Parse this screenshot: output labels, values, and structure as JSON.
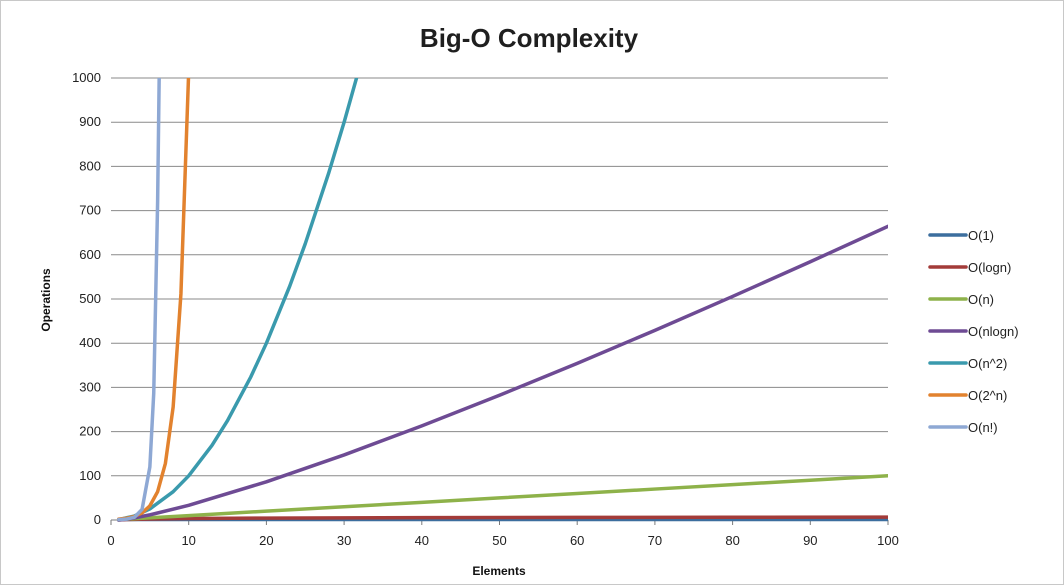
{
  "chart_data": {
    "type": "line",
    "title": "Big-O Complexity",
    "xlabel": "Elements",
    "ylabel": "Operations",
    "xlim": [
      0,
      100
    ],
    "ylim": [
      0,
      1000
    ],
    "x_ticks": [
      "0",
      "10",
      "20",
      "30",
      "40",
      "50",
      "60",
      "70",
      "80",
      "90",
      "100"
    ],
    "y_ticks": [
      "0",
      "100",
      "200",
      "300",
      "400",
      "500",
      "600",
      "700",
      "800",
      "900",
      "1000"
    ],
    "grid": true,
    "legend_position": "right",
    "series": [
      {
        "name": "O(1)",
        "color": "#3c6e9e",
        "points": [
          [
            1,
            1
          ],
          [
            100,
            1
          ]
        ]
      },
      {
        "name": "O(logn)",
        "color": "#a33b39",
        "points": [
          [
            1,
            0
          ],
          [
            2,
            1
          ],
          [
            5,
            2.3
          ],
          [
            10,
            3.3
          ],
          [
            20,
            4.3
          ],
          [
            40,
            5.3
          ],
          [
            60,
            5.9
          ],
          [
            80,
            6.3
          ],
          [
            100,
            6.6
          ]
        ]
      },
      {
        "name": "O(n)",
        "color": "#8eb24a",
        "points": [
          [
            1,
            1
          ],
          [
            10,
            10
          ],
          [
            20,
            20
          ],
          [
            30,
            30
          ],
          [
            40,
            40
          ],
          [
            50,
            50
          ],
          [
            60,
            60
          ],
          [
            70,
            70
          ],
          [
            80,
            80
          ],
          [
            90,
            90
          ],
          [
            100,
            100
          ]
        ]
      },
      {
        "name": "O(nlogn)",
        "color": "#6e4b94",
        "points": [
          [
            1,
            0
          ],
          [
            2,
            2
          ],
          [
            3,
            4.8
          ],
          [
            5,
            11.6
          ],
          [
            10,
            33.2
          ],
          [
            20,
            86.4
          ],
          [
            30,
            147.2
          ],
          [
            40,
            212.9
          ],
          [
            50,
            282.2
          ],
          [
            60,
            354.4
          ],
          [
            70,
            429
          ],
          [
            80,
            505.8
          ],
          [
            90,
            584.3
          ],
          [
            100,
            664.4
          ]
        ]
      },
      {
        "name": "O(n^2)",
        "color": "#3a9aad",
        "points": [
          [
            1,
            1
          ],
          [
            3,
            9
          ],
          [
            5,
            25
          ],
          [
            8,
            64
          ],
          [
            10,
            100
          ],
          [
            13,
            169
          ],
          [
            15,
            225
          ],
          [
            18,
            324
          ],
          [
            20,
            400
          ],
          [
            23,
            529
          ],
          [
            25,
            625
          ],
          [
            28,
            784
          ],
          [
            30,
            900
          ],
          [
            31.6,
            1000
          ]
        ]
      },
      {
        "name": "O(2^n)",
        "color": "#e2822e",
        "points": [
          [
            1,
            2
          ],
          [
            2,
            4
          ],
          [
            3,
            8
          ],
          [
            4,
            16
          ],
          [
            5,
            32
          ],
          [
            6,
            64
          ],
          [
            7,
            128
          ],
          [
            8,
            256
          ],
          [
            9,
            512
          ],
          [
            9.97,
            1000
          ]
        ]
      },
      {
        "name": "O(n!)",
        "color": "#8ea8d4",
        "points": [
          [
            1,
            1
          ],
          [
            2,
            2
          ],
          [
            3,
            6
          ],
          [
            4,
            24
          ],
          [
            5,
            120
          ],
          [
            5.5,
            287
          ],
          [
            6,
            720
          ],
          [
            6.2,
            1000
          ]
        ]
      }
    ]
  }
}
